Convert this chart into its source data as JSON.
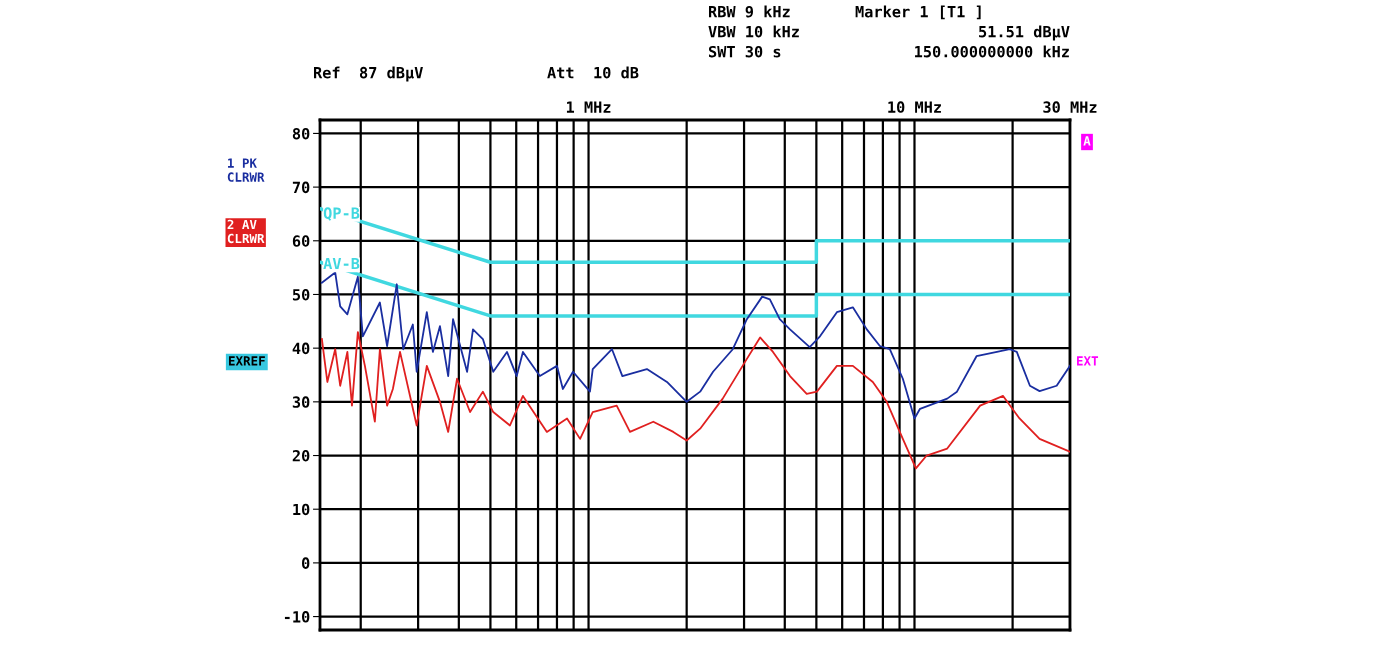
{
  "chart_data": {
    "type": "line",
    "xlabel": null,
    "log": "x",
    "xlim": [
      0.15,
      30
    ],
    "ylim": [
      -12.5,
      82.5
    ],
    "xticks": [
      {
        "value": 0.2,
        "label": null
      },
      {
        "value": 0.3,
        "label": null
      },
      {
        "value": 0.4,
        "label": null
      },
      {
        "value": 0.5,
        "label": null
      },
      {
        "value": 0.6,
        "label": null
      },
      {
        "value": 0.7,
        "label": null
      },
      {
        "value": 0.8,
        "label": null
      },
      {
        "value": 0.9,
        "label": null
      },
      {
        "value": 1,
        "label": "1 MHz"
      },
      {
        "value": 2,
        "label": null
      },
      {
        "value": 3,
        "label": null
      },
      {
        "value": 4,
        "label": null
      },
      {
        "value": 5,
        "label": null
      },
      {
        "value": 6,
        "label": null
      },
      {
        "value": 7,
        "label": null
      },
      {
        "value": 8,
        "label": null
      },
      {
        "value": 9,
        "label": null
      },
      {
        "value": 10,
        "label": "10 MHz"
      },
      {
        "value": 20,
        "label": null
      },
      {
        "value": 30,
        "label": "30 MHz"
      }
    ],
    "yticks": [
      -10,
      0,
      10,
      20,
      30,
      40,
      50,
      60,
      70,
      80
    ],
    "grid": true,
    "legend": false,
    "marker": "none",
    "line_style": "solid",
    "series": [
      {
        "name": "1 PK\nCLRWR",
        "color": "#1a2ea0",
        "x": [
          0.152,
          0.167,
          0.173,
          0.182,
          0.196,
          0.203,
          0.229,
          0.241,
          0.258,
          0.27,
          0.289,
          0.297,
          0.319,
          0.333,
          0.35,
          0.371,
          0.384,
          0.424,
          0.442,
          0.474,
          0.51,
          0.562,
          0.602,
          0.629,
          0.709,
          0.8,
          0.834,
          0.896,
          1.01,
          1.03,
          1.18,
          1.27,
          1.51,
          1.74,
          2.0,
          2.2,
          2.41,
          2.77,
          3.06,
          3.41,
          3.6,
          3.86,
          4.15,
          4.77,
          5.13,
          5.78,
          6.47,
          7.14,
          7.83,
          8.4,
          9.21,
          10.0,
          10.4,
          12.6,
          13.5,
          15.5,
          17.9,
          19.6,
          20.6,
          22.6,
          24.2,
          27.3,
          30.0
        ],
        "values": [
          52.2,
          54.1,
          47.8,
          46.3,
          53.3,
          42.2,
          48.5,
          40.4,
          51.9,
          39.8,
          44.4,
          35.6,
          46.7,
          39.3,
          44.1,
          34.8,
          45.4,
          35.6,
          43.5,
          41.7,
          35.6,
          39.3,
          34.8,
          39.3,
          34.8,
          36.7,
          32.4,
          35.6,
          31.9,
          36.1,
          39.8,
          34.8,
          36.1,
          33.7,
          30.0,
          31.9,
          35.6,
          39.8,
          45.4,
          49.6,
          49.1,
          45.4,
          43.5,
          40.2,
          42.2,
          46.7,
          47.6,
          43.5,
          40.4,
          39.8,
          34.3,
          26.9,
          28.7,
          30.6,
          31.9,
          38.5,
          39.3,
          39.8,
          39.3,
          33.0,
          32.0,
          33.0,
          36.7
        ]
      },
      {
        "name": "2 AV\nCLRWR",
        "color": "#e02020",
        "x": [
          0.152,
          0.158,
          0.167,
          0.173,
          0.182,
          0.188,
          0.196,
          0.206,
          0.221,
          0.229,
          0.241,
          0.251,
          0.264,
          0.297,
          0.319,
          0.35,
          0.371,
          0.395,
          0.433,
          0.474,
          0.51,
          0.574,
          0.629,
          0.745,
          0.859,
          0.942,
          1.03,
          1.22,
          1.34,
          1.58,
          1.82,
          2.0,
          2.2,
          2.58,
          3.06,
          3.36,
          3.68,
          4.15,
          4.67,
          5.02,
          5.78,
          6.47,
          7.45,
          8.22,
          9.21,
          10.1,
          10.9,
          12.6,
          15.9,
          18.7,
          21.0,
          24.2,
          30.0
        ],
        "values": [
          41.7,
          33.7,
          39.8,
          33.0,
          39.3,
          29.3,
          43.0,
          36.7,
          26.3,
          39.8,
          29.3,
          32.4,
          39.3,
          25.6,
          36.7,
          30.0,
          24.4,
          34.3,
          28.1,
          31.9,
          28.1,
          25.6,
          31.1,
          24.4,
          26.9,
          23.1,
          28.1,
          29.3,
          24.4,
          26.3,
          24.4,
          22.8,
          25.0,
          30.6,
          38.0,
          42.0,
          39.3,
          34.8,
          31.5,
          31.9,
          36.7,
          36.7,
          33.7,
          30.0,
          23.1,
          17.6,
          20.0,
          21.3,
          29.3,
          31.1,
          26.9,
          23.1,
          20.7
        ]
      },
      {
        "name": "QP-B",
        "color": "#40d8e0",
        "x": [
          0.15,
          0.5,
          5,
          5,
          30
        ],
        "values": [
          66,
          56,
          56,
          60,
          60
        ]
      },
      {
        "name": "AV-B",
        "color": "#40d8e0",
        "x": [
          0.15,
          0.5,
          5,
          5,
          30
        ],
        "values": [
          56,
          46,
          46,
          50,
          50
        ]
      }
    ],
    "annotations": [
      "Ref  87 dBµV",
      "Att  10 dB",
      "RBW 9 kHz",
      "VBW 10 kHz",
      "SWT 30 s",
      "Marker 1 [T1 ]",
      "51.51 dBµV",
      "150.000000000 kHz",
      "EXREF",
      "A",
      "EXT"
    ]
  }
}
